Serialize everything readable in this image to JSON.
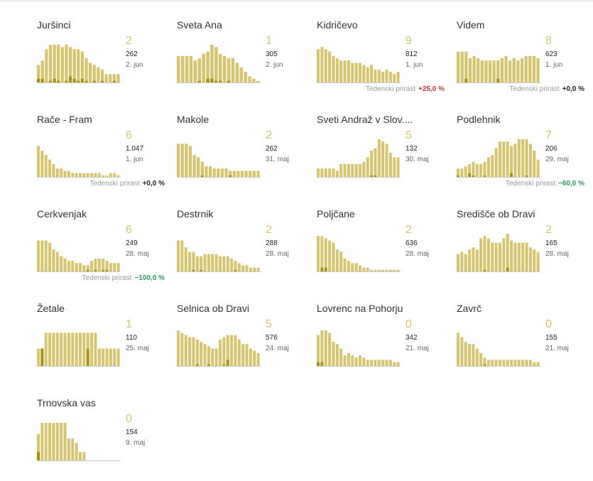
{
  "colors": {
    "bar_light": "#d6c56e",
    "bar_dark": "#a8910e",
    "baseline": "#c9c9c9",
    "text": "#333333",
    "growth_pos": "#c0392b",
    "growth_neg": "#27a060",
    "growth_neutral": "#222222"
  },
  "cards": [
    {
      "name": "Juršinci",
      "recent": "2",
      "total": "262",
      "date": "2. jun",
      "growth_label": "",
      "growth_value": "",
      "growth_sign": "",
      "chart_data": {
        "type": "bar",
        "values": [
          8,
          10,
          15,
          17,
          17,
          17,
          16,
          17,
          16,
          15,
          15,
          14,
          11,
          9,
          8,
          7,
          6,
          4,
          4,
          4,
          4
        ],
        "highlight": [
          2,
          2,
          0,
          1,
          2,
          1,
          0,
          1,
          3,
          2,
          1,
          2,
          1,
          0,
          1,
          0,
          1,
          0,
          0,
          1,
          0
        ]
      }
    },
    {
      "name": "Sveta Ana",
      "recent": "1",
      "total": "305",
      "date": "2. jun",
      "growth_label": "",
      "growth_value": "",
      "growth_sign": "",
      "chart_data": {
        "type": "bar",
        "values": [
          12,
          12,
          12,
          12,
          10,
          11,
          13,
          14,
          17,
          16,
          13,
          12,
          11,
          11,
          9,
          7,
          5,
          3,
          2,
          1
        ],
        "highlight": [
          0,
          0,
          0,
          0,
          0,
          1,
          0,
          2,
          2,
          1,
          1,
          0,
          1,
          0,
          0,
          0,
          0,
          0,
          0,
          0
        ]
      }
    },
    {
      "name": "Kidričevo",
      "recent": "9",
      "total": "812",
      "date": "1. jun",
      "growth_label": "Tedenski prirast",
      "growth_value": "+25,0 %",
      "growth_sign": "pos",
      "chart_data": {
        "type": "bar",
        "values": [
          15,
          16,
          15,
          14,
          12,
          11,
          10,
          10,
          10,
          9,
          9,
          9,
          8,
          7,
          8,
          6,
          6,
          5,
          6,
          5,
          4,
          5
        ],
        "highlight": [
          0,
          0,
          0,
          0,
          0,
          0,
          0,
          0,
          0,
          0,
          0,
          0,
          0,
          0,
          0,
          0,
          0,
          0,
          0,
          0,
          0,
          0
        ]
      }
    },
    {
      "name": "Videm",
      "recent": "8",
      "total": "623",
      "date": "1. jun",
      "growth_label": "Tedenski prirast",
      "growth_value": "+0,0 %",
      "growth_sign": "neu",
      "chart_data": {
        "type": "bar",
        "values": [
          14,
          14,
          14,
          11,
          12,
          11,
          10,
          10,
          10,
          10,
          10,
          11,
          12,
          10,
          11,
          10,
          11,
          12,
          12,
          12,
          11
        ],
        "highlight": [
          0,
          0,
          2,
          0,
          0,
          0,
          0,
          0,
          0,
          0,
          2,
          0,
          0,
          0,
          0,
          0,
          0,
          0,
          0,
          0,
          0
        ]
      }
    },
    {
      "name": "Rače - Fram",
      "recent": "6",
      "total": "1.047",
      "date": "1. jun",
      "growth_label": "Tedenski prirast",
      "growth_value": "+0,0 %",
      "growth_sign": "neu",
      "chart_data": {
        "type": "bar",
        "values": [
          14,
          12,
          10,
          8,
          6,
          4,
          4,
          3,
          3,
          2,
          2,
          2,
          2,
          2,
          2,
          2,
          2,
          1,
          1,
          2,
          2,
          1
        ],
        "highlight": [
          0,
          0,
          0,
          0,
          0,
          0,
          0,
          0,
          0,
          0,
          0,
          0,
          0,
          0,
          0,
          0,
          0,
          0,
          0,
          0,
          0,
          0
        ]
      }
    },
    {
      "name": "Makole",
      "recent": "2",
      "total": "262",
      "date": "31. maj",
      "growth_label": "",
      "growth_value": "",
      "growth_sign": "",
      "chart_data": {
        "type": "bar",
        "values": [
          15,
          15,
          15,
          14,
          10,
          9,
          7,
          5,
          5,
          4,
          4,
          4,
          4,
          3,
          3,
          3,
          3,
          3,
          3,
          3,
          3
        ],
        "highlight": [
          0,
          0,
          0,
          0,
          0,
          0,
          1,
          0,
          0,
          0,
          0,
          0,
          0,
          1,
          0,
          0,
          0,
          0,
          0,
          0,
          0
        ]
      }
    },
    {
      "name": "Sveti Andraž v Slov....",
      "recent": "5",
      "total": "132",
      "date": "30. maj",
      "growth_label": "",
      "growth_value": "",
      "growth_sign": "",
      "chart_data": {
        "type": "bar",
        "values": [
          4,
          4,
          4,
          4,
          4,
          3,
          6,
          6,
          6,
          6,
          6,
          6,
          7,
          9,
          12,
          13,
          17,
          16,
          15,
          11,
          9,
          9
        ],
        "highlight": [
          0,
          0,
          0,
          0,
          0,
          0,
          0,
          0,
          0,
          0,
          0,
          0,
          0,
          0,
          1,
          1,
          0,
          0,
          0,
          0,
          0,
          0
        ]
      }
    },
    {
      "name": "Podlehnik",
      "recent": "7",
      "total": "206",
      "date": "29. maj",
      "growth_label": "Tedenski prirast",
      "growth_value": "−60,0 %",
      "growth_sign": "neg",
      "chart_data": {
        "type": "bar",
        "values": [
          4,
          4,
          5,
          6,
          7,
          6,
          6,
          7,
          9,
          10,
          13,
          16,
          16,
          16,
          14,
          15,
          17,
          17,
          17,
          15,
          12,
          8
        ],
        "highlight": [
          1,
          0,
          0,
          2,
          1,
          0,
          0,
          1,
          0,
          0,
          0,
          0,
          0,
          0,
          2,
          0,
          0,
          0,
          1,
          0,
          0,
          0
        ]
      }
    },
    {
      "name": "Cerkvenjak",
      "recent": "6",
      "total": "249",
      "date": "28. maj",
      "growth_label": "Tedenski prirast",
      "growth_value": "−100,0 %",
      "growth_sign": "neg",
      "chart_data": {
        "type": "bar",
        "values": [
          14,
          14,
          14,
          13,
          10,
          9,
          7,
          6,
          5,
          5,
          4,
          4,
          3,
          3,
          5,
          6,
          6,
          6,
          5,
          4,
          4,
          4
        ],
        "highlight": [
          0,
          0,
          0,
          0,
          0,
          0,
          0,
          0,
          0,
          0,
          0,
          0,
          0,
          1,
          0,
          1,
          0,
          1,
          1,
          0,
          0,
          0
        ]
      }
    },
    {
      "name": "Destrnik",
      "recent": "2",
      "total": "288",
      "date": "28. maj",
      "growth_label": "",
      "growth_value": "",
      "growth_sign": "",
      "chart_data": {
        "type": "bar",
        "values": [
          14,
          14,
          11,
          9,
          9,
          7,
          7,
          8,
          8,
          8,
          8,
          7,
          7,
          7,
          6,
          5,
          4,
          3,
          3,
          2,
          2,
          2
        ],
        "highlight": [
          0,
          0,
          0,
          0,
          1,
          0,
          1,
          0,
          0,
          0,
          0,
          0,
          0,
          0,
          0,
          1,
          0,
          0,
          0,
          0,
          0,
          0
        ]
      }
    },
    {
      "name": "Poljčane",
      "recent": "2",
      "total": "636",
      "date": "28. maj",
      "growth_label": "",
      "growth_value": "",
      "growth_sign": "",
      "chart_data": {
        "type": "bar",
        "values": [
          16,
          16,
          15,
          14,
          13,
          10,
          9,
          6,
          5,
          4,
          4,
          3,
          2,
          2,
          1,
          1,
          1,
          1,
          1,
          1,
          1,
          1
        ],
        "highlight": [
          0,
          2,
          2,
          0,
          0,
          0,
          0,
          0,
          0,
          0,
          0,
          0,
          0,
          0,
          0,
          0,
          0,
          0,
          0,
          0,
          0,
          0
        ]
      }
    },
    {
      "name": "Središče ob Dravi",
      "recent": "2",
      "total": "165",
      "date": "28. maj",
      "growth_label": "",
      "growth_value": "",
      "growth_sign": "",
      "chart_data": {
        "type": "bar",
        "values": [
          8,
          9,
          8,
          10,
          11,
          10,
          15,
          16,
          15,
          13,
          13,
          13,
          15,
          17,
          14,
          13,
          13,
          13,
          13,
          11,
          10,
          9
        ],
        "highlight": [
          0,
          0,
          0,
          0,
          0,
          0,
          0,
          1,
          0,
          0,
          0,
          0,
          0,
          2,
          0,
          0,
          0,
          0,
          0,
          0,
          0,
          0
        ]
      }
    },
    {
      "name": "Žetale",
      "recent": "1",
      "total": "110",
      "date": "25. maj",
      "growth_label": "",
      "growth_value": "",
      "growth_sign": "",
      "chart_data": {
        "type": "bar",
        "values": [
          8,
          8,
          15,
          15,
          15,
          15,
          15,
          15,
          15,
          15,
          15,
          15,
          15,
          15,
          15,
          15,
          8,
          8,
          8,
          8,
          8,
          8
        ],
        "highlight": [
          0,
          8,
          0,
          0,
          0,
          0,
          0,
          0,
          0,
          0,
          0,
          0,
          0,
          8,
          0,
          0,
          0,
          0,
          0,
          0,
          0,
          0
        ]
      }
    },
    {
      "name": "Selnica ob Dravi",
      "recent": "5",
      "total": "576",
      "date": "24. maj",
      "growth_label": "",
      "growth_value": "",
      "growth_sign": "",
      "chart_data": {
        "type": "bar",
        "values": [
          16,
          15,
          14,
          13,
          13,
          12,
          11,
          10,
          9,
          8,
          8,
          12,
          13,
          14,
          14,
          14,
          12,
          10,
          10,
          8,
          7,
          6
        ],
        "highlight": [
          0,
          0,
          0,
          0,
          0,
          1,
          0,
          0,
          1,
          0,
          0,
          0,
          1,
          3,
          0,
          0,
          0,
          0,
          0,
          0,
          0,
          0
        ]
      }
    },
    {
      "name": "Lovrenc na Pohorju",
      "recent": "0",
      "total": "342",
      "date": "21. maj",
      "growth_label": "",
      "growth_value": "",
      "growth_sign": "",
      "chart_data": {
        "type": "bar",
        "values": [
          14,
          16,
          16,
          15,
          11,
          10,
          8,
          5,
          6,
          5,
          4,
          5,
          4,
          3,
          3,
          3,
          3,
          3,
          3,
          3,
          2,
          2
        ],
        "highlight": [
          2,
          2,
          0,
          0,
          0,
          0,
          0,
          0,
          0,
          0,
          0,
          0,
          0,
          0,
          0,
          0,
          0,
          0,
          0,
          0,
          0,
          0
        ]
      }
    },
    {
      "name": "Zavrč",
      "recent": "0",
      "total": "155",
      "date": "21. maj",
      "growth_label": "",
      "growth_value": "",
      "growth_sign": "",
      "chart_data": {
        "type": "bar",
        "values": [
          15,
          13,
          11,
          10,
          10,
          8,
          6,
          4,
          3,
          3,
          3,
          3,
          3,
          3,
          3,
          3,
          3,
          3,
          3,
          3,
          2,
          2
        ],
        "highlight": [
          0,
          0,
          0,
          0,
          0,
          0,
          0,
          1,
          0,
          0,
          0,
          0,
          0,
          0,
          0,
          0,
          0,
          0,
          0,
          0,
          0,
          0
        ]
      }
    },
    {
      "name": "Trnovska vas",
      "recent": "0",
      "total": "154",
      "date": "9. maj",
      "growth_label": "",
      "growth_value": "",
      "growth_sign": "",
      "chart_data": {
        "type": "bar",
        "values": [
          12,
          17,
          17,
          17,
          17,
          17,
          17,
          17,
          10,
          10,
          8,
          4,
          4,
          0,
          0,
          0,
          0,
          0,
          0,
          0,
          0,
          0
        ],
        "highlight": [
          4,
          0,
          0,
          0,
          0,
          0,
          0,
          0,
          0,
          0,
          0,
          0,
          0,
          0,
          0,
          0,
          0,
          0,
          0,
          0,
          0,
          0
        ]
      }
    }
  ]
}
